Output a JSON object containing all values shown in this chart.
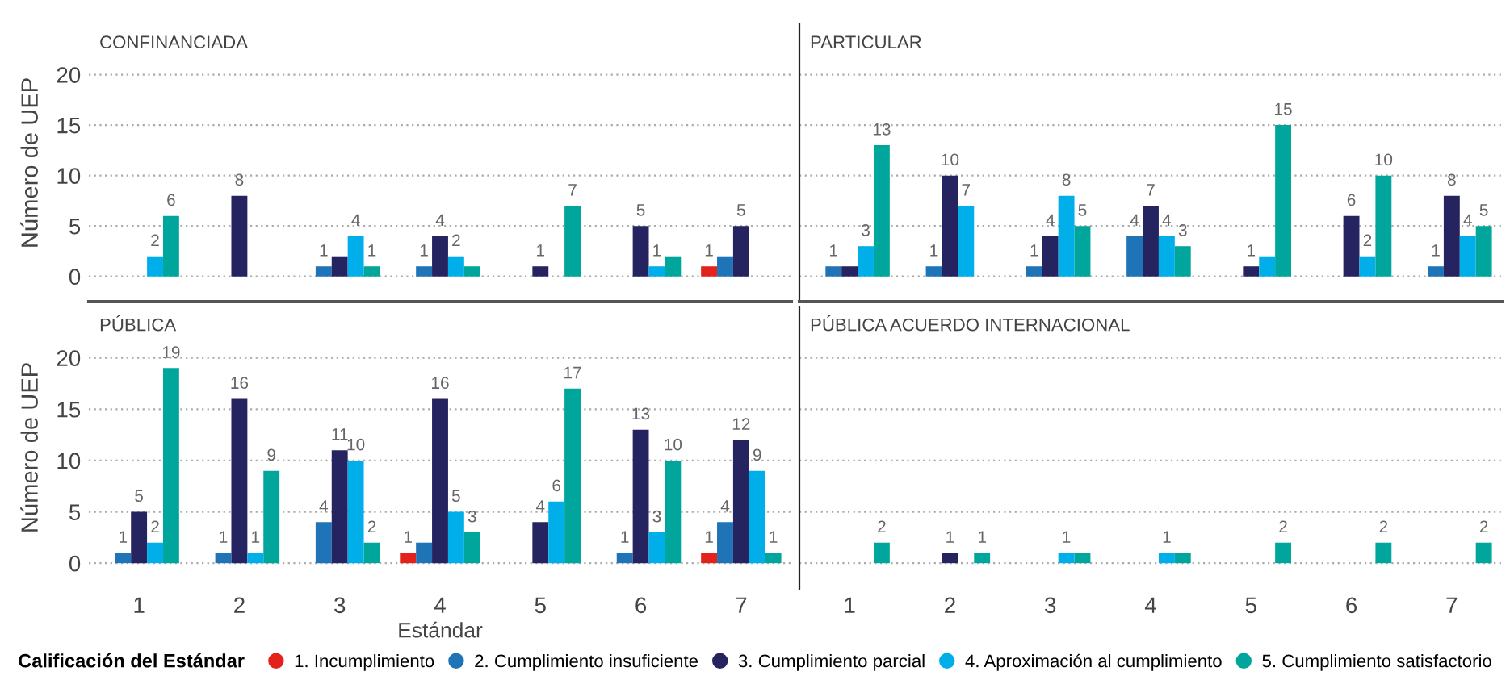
{
  "chart_data": [
    {
      "type": "bar",
      "title": "CONFINANCIADA",
      "ylabel": "Número de UEP",
      "legend_title": "Calificación del Estándar",
      "legend": "bottom",
      "categories": [
        "1",
        "2",
        "3",
        "4",
        "5",
        "6",
        "7"
      ],
      "ylim": [
        -2.5,
        25
      ],
      "yticks": [
        0,
        5,
        10,
        15,
        20
      ],
      "grid": "y",
      "tick_labels": "y",
      "series": [
        {
          "name": "1. Incumplimiento",
          "color": "#e3221c",
          "values": [
            null,
            null,
            null,
            null,
            null,
            null,
            1
          ],
          "value_labels": [
            null,
            null,
            null,
            null,
            null,
            null,
            "1"
          ]
        },
        {
          "name": "2. Cumplimiento insuficiente",
          "color": "#1f73b7",
          "values": [
            null,
            null,
            1,
            1,
            null,
            null,
            2
          ],
          "value_labels": [
            null,
            null,
            "1",
            "1",
            null,
            null,
            null
          ]
        },
        {
          "name": "3. Cumplimiento parcial",
          "color": "#252461",
          "values": [
            null,
            8,
            2,
            4,
            1,
            5,
            5
          ],
          "value_labels": [
            null,
            "8",
            null,
            "4",
            "1",
            "5",
            "5"
          ]
        },
        {
          "name": "4. Aproximación al cumplimiento",
          "color": "#00aeea",
          "values": [
            2,
            null,
            4,
            2,
            null,
            1,
            null
          ],
          "value_labels": [
            "2",
            null,
            "4",
            "2",
            null,
            "1",
            null
          ]
        },
        {
          "name": "5. Cumplimiento satisfactorio",
          "color": "#00a69c",
          "values": [
            6,
            null,
            1,
            1,
            7,
            2,
            null
          ],
          "value_labels": [
            "6",
            null,
            "1",
            null,
            "7",
            null,
            null
          ]
        }
      ]
    },
    {
      "type": "bar",
      "title": "PARTICULAR",
      "categories": [
        "1",
        "2",
        "3",
        "4",
        "5",
        "6",
        "7"
      ],
      "ylim": [
        -2.5,
        25
      ],
      "yticks": [
        0,
        5,
        10,
        15,
        20
      ],
      "grid": "y",
      "tick_labels": false,
      "series": [
        {
          "color": "#e3221c",
          "values": [
            null,
            null,
            null,
            null,
            null,
            null,
            null
          ],
          "value_labels": [
            null,
            null,
            null,
            null,
            null,
            null,
            null
          ]
        },
        {
          "color": "#1f73b7",
          "values": [
            1,
            1,
            1,
            4,
            null,
            null,
            1
          ],
          "value_labels": [
            "1",
            "1",
            "1",
            "4",
            null,
            null,
            "1"
          ]
        },
        {
          "color": "#252461",
          "values": [
            1,
            10,
            4,
            7,
            1,
            6,
            8
          ],
          "value_labels": [
            null,
            "10",
            "4",
            "7",
            "1",
            "6",
            "8"
          ]
        },
        {
          "color": "#00aeea",
          "values": [
            3,
            7,
            8,
            4,
            2,
            2,
            4
          ],
          "value_labels": [
            "3",
            "7",
            "8",
            "4",
            null,
            "2",
            "4"
          ]
        },
        {
          "color": "#00a69c",
          "values": [
            13,
            null,
            5,
            3,
            15,
            10,
            5
          ],
          "value_labels": [
            "13",
            null,
            "5",
            "3",
            "15",
            "10",
            "5"
          ]
        }
      ]
    },
    {
      "type": "bar",
      "title": "PÚBLICA",
      "ylabel": "Número de UEP",
      "xlabel": "Estándar",
      "categories": [
        "1",
        "2",
        "3",
        "4",
        "5",
        "6",
        "7"
      ],
      "ylim": [
        -2.5,
        25
      ],
      "yticks": [
        0,
        5,
        10,
        15,
        20
      ],
      "grid": "y",
      "series": [
        {
          "color": "#e3221c",
          "values": [
            null,
            null,
            null,
            1,
            null,
            null,
            1
          ],
          "value_labels": [
            null,
            null,
            null,
            "1",
            null,
            null,
            "1"
          ]
        },
        {
          "color": "#1f73b7",
          "values": [
            1,
            1,
            4,
            2,
            null,
            1,
            4
          ],
          "value_labels": [
            "1",
            "1",
            "4",
            null,
            null,
            "1",
            "4"
          ]
        },
        {
          "color": "#252461",
          "values": [
            5,
            16,
            11,
            16,
            4,
            13,
            12
          ],
          "value_labels": [
            "5",
            "16",
            "11",
            "16",
            "4",
            "13",
            "12"
          ]
        },
        {
          "color": "#00aeea",
          "values": [
            2,
            1,
            10,
            5,
            6,
            3,
            9
          ],
          "value_labels": [
            "2",
            "1",
            "10",
            "5",
            "6",
            "3",
            "9"
          ]
        },
        {
          "color": "#00a69c",
          "values": [
            19,
            9,
            2,
            3,
            17,
            10,
            1
          ],
          "value_labels": [
            "19",
            "9",
            "2",
            "3",
            "17",
            "10",
            "1"
          ]
        }
      ]
    },
    {
      "type": "bar",
      "title": "PÚBLICA ACUERDO INTERNACIONAL",
      "categories": [
        "1",
        "2",
        "3",
        "4",
        "5",
        "6",
        "7"
      ],
      "ylim": [
        -2.5,
        25
      ],
      "yticks": [
        0,
        5,
        10,
        15,
        20
      ],
      "grid": "y",
      "tick_labels": "x",
      "series": [
        {
          "color": "#e3221c",
          "values": [
            null,
            null,
            null,
            null,
            null,
            null,
            null
          ],
          "value_labels": [
            null,
            null,
            null,
            null,
            null,
            null,
            null
          ]
        },
        {
          "color": "#1f73b7",
          "values": [
            null,
            null,
            null,
            null,
            null,
            null,
            null
          ],
          "value_labels": [
            null,
            null,
            null,
            null,
            null,
            null,
            null
          ]
        },
        {
          "color": "#252461",
          "values": [
            null,
            1,
            null,
            null,
            null,
            null,
            null
          ],
          "value_labels": [
            null,
            "1",
            null,
            null,
            null,
            null,
            null
          ]
        },
        {
          "color": "#00aeea",
          "values": [
            null,
            null,
            1,
            1,
            null,
            null,
            null
          ],
          "value_labels": [
            null,
            null,
            "1",
            "1",
            null,
            null,
            null
          ]
        },
        {
          "color": "#00a69c",
          "values": [
            2,
            1,
            1,
            1,
            2,
            2,
            2
          ],
          "value_labels": [
            "2",
            "1",
            null,
            null,
            "2",
            "2",
            "2"
          ]
        }
      ]
    }
  ]
}
